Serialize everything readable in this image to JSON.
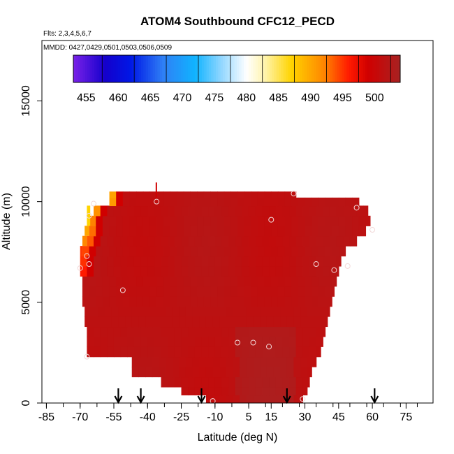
{
  "chart_data": {
    "type": "heatmap",
    "title": "ATOM4 Southbound CFC12_PECD",
    "flights_label": "Flts: 2,3,4,5,6,7",
    "dates_label": "MMDD: 0427,0429,0501,0503,0506,0509",
    "xlabel": "Latitude (deg N)",
    "ylabel": "Altitude (m)",
    "xlim": [
      -87,
      87
    ],
    "ylim": [
      0,
      18000
    ],
    "x_ticks": [
      -85,
      -70,
      -55,
      -40,
      -25,
      -10,
      5,
      15,
      30,
      45,
      60,
      75
    ],
    "x_tick_labels": [
      "-85",
      "-70",
      "-55",
      "-40",
      "-25",
      "-10",
      "5",
      "15",
      "30",
      "45",
      "60",
      "75"
    ],
    "y_ticks": [
      0,
      5000,
      10000,
      15000
    ],
    "y_tick_labels": [
      "0",
      "5000",
      "10000",
      "15000"
    ],
    "colorbar": {
      "min": 453,
      "max": 504,
      "ticks": [
        455,
        460,
        465,
        470,
        475,
        480,
        485,
        490,
        495,
        500
      ],
      "tick_labels": [
        "455",
        "460",
        "465",
        "470",
        "475",
        "480",
        "485",
        "490",
        "495",
        "500"
      ],
      "stops": [
        {
          "value": 453,
          "color": "#7a22e8"
        },
        {
          "value": 458,
          "color": "#1400cc"
        },
        {
          "value": 462,
          "color": "#0018e6"
        },
        {
          "value": 467,
          "color": "#2f7ff5"
        },
        {
          "value": 472,
          "color": "#10b4ff"
        },
        {
          "value": 476,
          "color": "#8fd6ff"
        },
        {
          "value": 480,
          "color": "#ffffff"
        },
        {
          "value": 483,
          "color": "#fff3a8"
        },
        {
          "value": 487,
          "color": "#ffd400"
        },
        {
          "value": 492,
          "color": "#ff8800"
        },
        {
          "value": 496,
          "color": "#ff1a00"
        },
        {
          "value": 499,
          "color": "#d00000"
        },
        {
          "value": 504,
          "color": "#a82222"
        }
      ]
    },
    "sample_points": [
      {
        "lat": -70,
        "alt": 6700
      },
      {
        "lat": -67,
        "alt": 7300
      },
      {
        "lat": -66,
        "alt": 6900
      },
      {
        "lat": -66,
        "alt": 9300
      },
      {
        "lat": -64,
        "alt": 9900
      },
      {
        "lat": -67,
        "alt": 2300
      },
      {
        "lat": -51,
        "alt": 5600
      },
      {
        "lat": -36,
        "alt": 10000
      },
      {
        "lat": -11,
        "alt": 100
      },
      {
        "lat": 0,
        "alt": 3000
      },
      {
        "lat": 7,
        "alt": 3000
      },
      {
        "lat": 14,
        "alt": 2800
      },
      {
        "lat": 15,
        "alt": 9100
      },
      {
        "lat": 25,
        "alt": 10400
      },
      {
        "lat": 29,
        "alt": 200
      },
      {
        "lat": 35,
        "alt": 6900
      },
      {
        "lat": 43,
        "alt": 6600
      },
      {
        "lat": 49,
        "alt": 6800
      },
      {
        "lat": 53,
        "alt": 9700
      },
      {
        "lat": 60,
        "alt": 8600
      }
    ],
    "arrows_lat": [
      -53,
      -43,
      -16,
      22,
      61
    ],
    "field_mean_value": 501
  }
}
